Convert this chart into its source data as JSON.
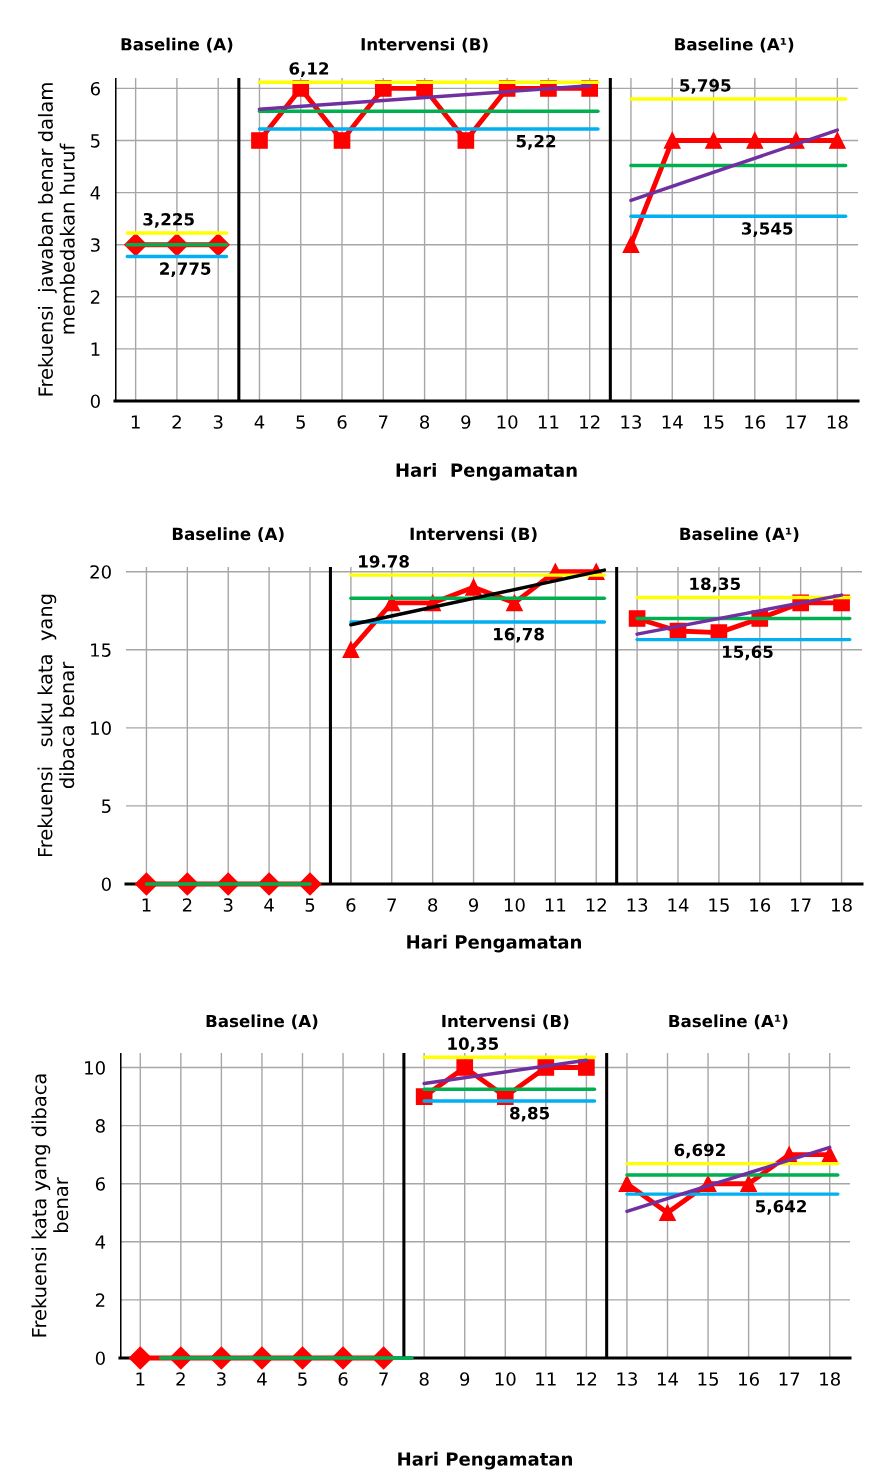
{
  "chart_data": [
    {
      "type": "line",
      "xlabel": "Hari  Pengamatan",
      "ylabel": "Frekuensi  jawaban benar dalam\nmembedakan huruf",
      "xlim": [
        0.5,
        18.5
      ],
      "xticks": [
        1,
        2,
        3,
        4,
        5,
        6,
        7,
        8,
        9,
        10,
        11,
        12,
        13,
        14,
        15,
        16,
        17,
        18
      ],
      "ylim": [
        0,
        6.2
      ],
      "yticks": [
        0,
        1,
        2,
        3,
        4,
        5,
        6
      ],
      "grid": true,
      "series": [
        {
          "color": "#ff0000",
          "marker": "diamond",
          "x": [
            1,
            2,
            3
          ],
          "values": [
            3,
            3,
            3
          ]
        },
        {
          "color": "#ff0000",
          "marker": "square",
          "x": [
            4,
            5,
            6,
            7,
            8,
            9,
            10,
            11,
            12
          ],
          "values": [
            5,
            6,
            5,
            6,
            6,
            5,
            6,
            6,
            6
          ]
        },
        {
          "color": "#ff0000",
          "marker": "triangle",
          "x": [
            13,
            14,
            15,
            16,
            17,
            18
          ],
          "values": [
            3,
            5,
            5,
            5,
            5,
            5
          ]
        },
        {
          "color": "#ffff00",
          "marker": "none",
          "x": [
            0.8,
            3.2
          ],
          "values": [
            3.225,
            3.225
          ]
        },
        {
          "color": "#00b050",
          "marker": "none",
          "x": [
            0.8,
            3.2
          ],
          "values": [
            3,
            3
          ]
        },
        {
          "color": "#00b0f0",
          "marker": "none",
          "x": [
            0.8,
            3.2
          ],
          "values": [
            2.775,
            2.775
          ]
        },
        {
          "color": "#ffff00",
          "marker": "none",
          "x": [
            4,
            12.2
          ],
          "values": [
            6.12,
            6.12
          ]
        },
        {
          "color": "#00b050",
          "marker": "none",
          "x": [
            4,
            12.2
          ],
          "values": [
            5.56,
            5.56
          ]
        },
        {
          "color": "#00b0f0",
          "marker": "none",
          "x": [
            4,
            12.2
          ],
          "values": [
            5.22,
            5.22
          ]
        },
        {
          "color": "#7030a0",
          "marker": "none",
          "x": [
            4,
            12
          ],
          "values": [
            5.6,
            6.05
          ]
        },
        {
          "color": "#ffff00",
          "marker": "none",
          "x": [
            13,
            18.2
          ],
          "values": [
            5.795,
            5.795
          ]
        },
        {
          "color": "#00b050",
          "marker": "none",
          "x": [
            13,
            18.2
          ],
          "values": [
            4.52,
            4.52
          ]
        },
        {
          "color": "#00b0f0",
          "marker": "none",
          "x": [
            13,
            18.2
          ],
          "values": [
            3.545,
            3.545
          ]
        },
        {
          "color": "#7030a0",
          "marker": "none",
          "x": [
            13,
            18
          ],
          "values": [
            3.85,
            5.2
          ]
        }
      ],
      "ref_lines": [
        {
          "axis": "x",
          "value": 0.5
        },
        {
          "axis": "x",
          "value": 3.5
        },
        {
          "axis": "x",
          "value": 12.5
        }
      ],
      "annotations": [
        "Baseline (A)",
        "Intervensi (B)",
        "Baseline (A¹)",
        {
          "text": "3,225",
          "x": 1.8,
          "y": 3.225
        },
        {
          "text": "2,775",
          "x": 2.2,
          "y": 2.775
        },
        {
          "text": "6,12",
          "x": 5.2,
          "y": 6.12
        },
        {
          "text": "5,22",
          "x": 10.7,
          "y": 5.22
        },
        {
          "text": "5,795",
          "x": 14.8,
          "y": 5.795
        },
        {
          "text": "3,545",
          "x": 16.3,
          "y": 3.545
        }
      ]
    },
    {
      "type": "line",
      "xlabel": "Hari Pengamatan",
      "ylabel": "Frekuensi   suku kata  yang\ndibaca benar",
      "xlim": [
        0.5,
        18.5
      ],
      "xticks": [
        1,
        2,
        3,
        4,
        5,
        6,
        7,
        8,
        9,
        10,
        11,
        12,
        13,
        14,
        15,
        16,
        17,
        18
      ],
      "ylim": [
        0,
        20.3
      ],
      "yticks": [
        0,
        5,
        10,
        15,
        20
      ],
      "grid": true,
      "series": [
        {
          "color": "#ff0000",
          "marker": "diamond",
          "x": [
            1,
            2,
            3,
            4,
            5
          ],
          "values": [
            0,
            0,
            0,
            0,
            0
          ]
        },
        {
          "color": "#00b050",
          "marker": "none",
          "x": [
            1,
            5
          ],
          "values": [
            0,
            0
          ]
        },
        {
          "color": "#ff0000",
          "marker": "triangle",
          "x": [
            6,
            7,
            8,
            9,
            10,
            11,
            12
          ],
          "values": [
            15,
            18,
            18,
            19,
            18,
            20,
            20
          ]
        },
        {
          "color": "#ffff00",
          "marker": "none",
          "x": [
            6,
            12.2
          ],
          "values": [
            19.78,
            19.78
          ]
        },
        {
          "color": "#00b050",
          "marker": "none",
          "x": [
            6,
            12.2
          ],
          "values": [
            18.3,
            18.3
          ]
        },
        {
          "color": "#00b0f0",
          "marker": "none",
          "x": [
            6,
            12.2
          ],
          "values": [
            16.78,
            16.78
          ]
        },
        {
          "color": "#000000",
          "marker": "none",
          "x": [
            6,
            12.2
          ],
          "values": [
            16.6,
            20.1
          ]
        },
        {
          "color": "#ff0000",
          "marker": "square",
          "x": [
            13,
            14,
            15,
            16,
            17,
            18
          ],
          "values": [
            17,
            16.2,
            16.1,
            17,
            18,
            18
          ]
        },
        {
          "color": "#ffff00",
          "marker": "none",
          "x": [
            13,
            18.2
          ],
          "values": [
            18.35,
            18.35
          ]
        },
        {
          "color": "#00b050",
          "marker": "none",
          "x": [
            13,
            18.2
          ],
          "values": [
            17,
            17
          ]
        },
        {
          "color": "#00b0f0",
          "marker": "none",
          "x": [
            13,
            18.2
          ],
          "values": [
            15.65,
            15.65
          ]
        },
        {
          "color": "#7030a0",
          "marker": "none",
          "x": [
            13,
            18
          ],
          "values": [
            16,
            18.5
          ]
        }
      ],
      "ref_lines": [
        {
          "axis": "x",
          "value": 5.5
        },
        {
          "axis": "x",
          "value": 12.5
        }
      ],
      "annotations": [
        "Baseline (A)",
        "Intervensi (B)",
        "Baseline (A¹)",
        {
          "text": "19.78",
          "x": 6.8,
          "y": 19.78
        },
        {
          "text": "16,78",
          "x": 10.1,
          "y": 16.78
        },
        {
          "text": "18,35",
          "x": 14.9,
          "y": 18.35
        },
        {
          "text": "15,65",
          "x": 15.7,
          "y": 15.65
        }
      ]
    },
    {
      "type": "line",
      "xlabel": "Hari Pengamatan",
      "ylabel": "Frekuensi kata yang dibaca\nbenar",
      "xlim": [
        0.5,
        18.5
      ],
      "xticks": [
        1,
        2,
        3,
        4,
        5,
        6,
        7,
        8,
        9,
        10,
        11,
        12,
        13,
        14,
        15,
        16,
        17,
        18
      ],
      "ylim": [
        0,
        10.5
      ],
      "yticks": [
        0,
        2,
        4,
        6,
        8,
        10
      ],
      "grid": true,
      "series": [
        {
          "color": "#ff0000",
          "marker": "diamond",
          "x": [
            1,
            2,
            3,
            4,
            5,
            6,
            7
          ],
          "values": [
            0,
            0,
            0,
            0,
            0,
            0,
            0
          ]
        },
        {
          "color": "#00b050",
          "marker": "none",
          "x": [
            1.5,
            7.7
          ],
          "values": [
            0,
            0
          ]
        },
        {
          "color": "#ff0000",
          "marker": "square",
          "x": [
            8,
            9,
            10,
            11,
            12
          ],
          "values": [
            9,
            10,
            9,
            10,
            10
          ]
        },
        {
          "color": "#ffff00",
          "marker": "none",
          "x": [
            8,
            12.2
          ],
          "values": [
            10.35,
            10.35
          ]
        },
        {
          "color": "#00b050",
          "marker": "none",
          "x": [
            8,
            12.2
          ],
          "values": [
            9.25,
            9.25
          ]
        },
        {
          "color": "#00b0f0",
          "marker": "none",
          "x": [
            8,
            12.2
          ],
          "values": [
            8.85,
            8.85
          ]
        },
        {
          "color": "#7030a0",
          "marker": "none",
          "x": [
            8,
            12
          ],
          "values": [
            9.45,
            10.25
          ]
        },
        {
          "color": "#ff0000",
          "marker": "triangle",
          "x": [
            13,
            14,
            15,
            16,
            17,
            18
          ],
          "values": [
            6,
            5,
            6,
            6,
            7,
            7
          ]
        },
        {
          "color": "#ffff00",
          "marker": "none",
          "x": [
            13,
            18.2
          ],
          "values": [
            6.692,
            6.692
          ]
        },
        {
          "color": "#00b050",
          "marker": "none",
          "x": [
            13,
            18.2
          ],
          "values": [
            6.3,
            6.3
          ]
        },
        {
          "color": "#00b0f0",
          "marker": "none",
          "x": [
            13,
            18.2
          ],
          "values": [
            5.642,
            5.642
          ]
        },
        {
          "color": "#7030a0",
          "marker": "none",
          "x": [
            13,
            18
          ],
          "values": [
            5.05,
            7.25
          ]
        }
      ],
      "ref_lines": [
        {
          "axis": "x",
          "value": 0.5
        },
        {
          "axis": "x",
          "value": 7.5
        },
        {
          "axis": "x",
          "value": 12.5
        }
      ],
      "annotations": [
        "Baseline (A)",
        "Intervensi (B)",
        "Baseline (A¹)",
        {
          "text": "10,35",
          "x": 9.2,
          "y": 10.35
        },
        {
          "text": "8,85",
          "x": 10.6,
          "y": 8.85
        },
        {
          "text": "6,692",
          "x": 14.8,
          "y": 6.692
        },
        {
          "text": "5,642",
          "x": 16.8,
          "y": 5.642
        }
      ]
    }
  ]
}
